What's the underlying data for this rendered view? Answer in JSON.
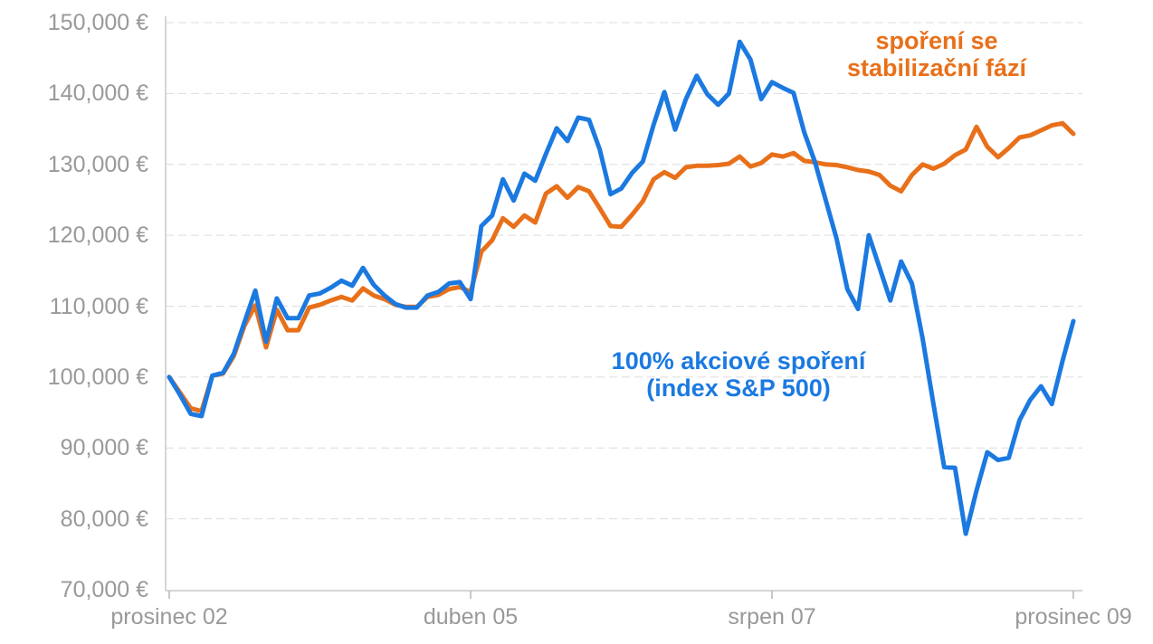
{
  "chart_data": {
    "type": "line",
    "title": "",
    "x_axis": {
      "tick_labels": [
        "prosinec 02",
        "duben 05",
        "srpen 07",
        "prosinec 09"
      ],
      "tick_month_positions": [
        0,
        28,
        56,
        84
      ],
      "months_total": 84
    },
    "y_axis": {
      "min": 70000,
      "max": 150000,
      "step": 10000,
      "tick_labels": [
        "150,000 €",
        "140,000 €",
        "130,000 €",
        "120,000 €",
        "110,000 €",
        "100,000 €",
        "90,000 €",
        "80,000 €",
        "70,000 €"
      ],
      "tick_values": [
        150000,
        140000,
        130000,
        120000,
        110000,
        100000,
        90000,
        80000,
        70000
      ],
      "unit": "€"
    },
    "grid": {
      "color": "#DCDCDC",
      "dash": "9 5",
      "shown": true
    },
    "axis_color": "#C8C8C8",
    "label_color": "#999999",
    "series": [
      {
        "id": "equity",
        "name": "100% akciové spoření (index S&P 500)",
        "color": "#1B79E0",
        "values": [
          100000,
          97500,
          94800,
          94500,
          100200,
          100600,
          103300,
          107800,
          112200,
          105000,
          111100,
          108300,
          108300,
          111500,
          111800,
          112600,
          113600,
          112900,
          115400,
          113000,
          111500,
          110300,
          109800,
          109800,
          111500,
          112000,
          113200,
          113400,
          111000,
          121300,
          122800,
          127900,
          124900,
          128700,
          127700,
          131500,
          135100,
          133300,
          136600,
          136300,
          132100,
          125800,
          126600,
          128800,
          130400,
          135600,
          140200,
          134900,
          139200,
          142500,
          139900,
          138400,
          140000,
          147300,
          144800,
          139200,
          141600,
          140800,
          140100,
          134500,
          130300,
          124900,
          119500,
          112400,
          109600,
          120000,
          115400,
          110800,
          116300,
          113200,
          105400,
          96200,
          87300,
          87200,
          77900,
          84000,
          89400,
          88300,
          88600,
          93900,
          96800,
          98700,
          96200,
          102300,
          107900
        ]
      },
      {
        "id": "stabilized",
        "name": "spoření se stabilizační fází",
        "color": "#E8701A",
        "values": [
          100000,
          97800,
          95600,
          95200,
          100200,
          100500,
          103000,
          107300,
          110100,
          104200,
          109500,
          106600,
          106600,
          109800,
          110200,
          110800,
          111300,
          110800,
          112500,
          111500,
          111000,
          110200,
          109900,
          109900,
          111300,
          111600,
          112400,
          112700,
          112000,
          117700,
          119300,
          122400,
          121200,
          122800,
          121800,
          125900,
          126900,
          125300,
          126800,
          126200,
          123800,
          121300,
          121200,
          122900,
          124800,
          127900,
          128900,
          128100,
          129600,
          129800,
          129800,
          129900,
          130100,
          131100,
          129700,
          130200,
          131400,
          131100,
          131600,
          130500,
          130300,
          130000,
          129900,
          129600,
          129200,
          129000,
          128500,
          127000,
          126200,
          128500,
          130000,
          129400,
          130100,
          131300,
          132100,
          135300,
          132500,
          131000,
          132300,
          133800,
          134100,
          134800,
          135500,
          135800,
          134300
        ]
      }
    ],
    "annotations": [
      {
        "series": "stabilized",
        "line1": "spoření se",
        "line2": "stabilizační fází"
      },
      {
        "series": "equity",
        "line1": "100% akciové spoření",
        "line2": "(index S&P 500)"
      }
    ],
    "legend_position": "annotations-on-plot"
  }
}
